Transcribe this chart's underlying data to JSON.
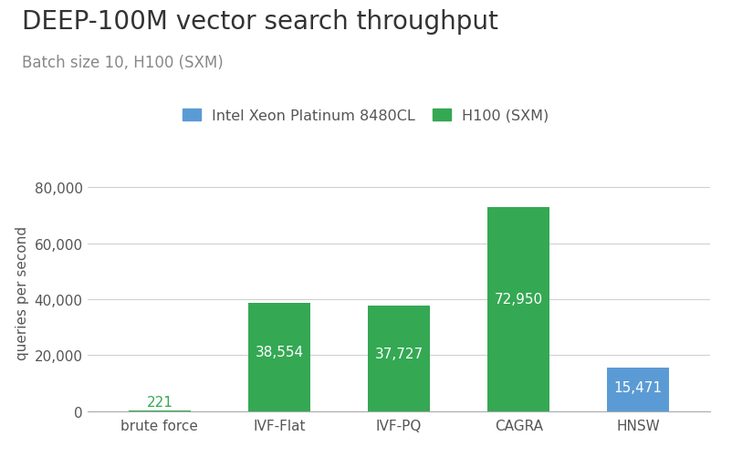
{
  "title": "DEEP-100M vector search throughput",
  "subtitle": "Batch size 10, H100 (SXM)",
  "categories": [
    "brute force",
    "IVF-Flat",
    "IVF-PQ",
    "CAGRA",
    "HNSW"
  ],
  "values": [
    221,
    38554,
    37727,
    72950,
    15471
  ],
  "bar_colors": [
    "#34a853",
    "#34a853",
    "#34a853",
    "#34a853",
    "#5b9bd5"
  ],
  "label_colors": [
    "#34a853",
    "#ffffff",
    "#ffffff",
    "#ffffff",
    "#ffffff"
  ],
  "ylabel": "queries per second",
  "ylim": [
    0,
    85000
  ],
  "yticks": [
    0,
    20000,
    40000,
    60000,
    80000
  ],
  "ytick_labels": [
    "0",
    "20,000",
    "40,000",
    "60,000",
    "80,000"
  ],
  "legend_labels": [
    "Intel Xeon Platinum 8480CL",
    "H100 (SXM)"
  ],
  "legend_colors": [
    "#5b9bd5",
    "#34a853"
  ],
  "title_fontsize": 20,
  "subtitle_fontsize": 12,
  "axis_label_fontsize": 11,
  "tick_fontsize": 11,
  "bar_label_fontsize": 11,
  "background_color": "#ffffff",
  "grid_color": "#d0d0d0",
  "bar_width": 0.52
}
